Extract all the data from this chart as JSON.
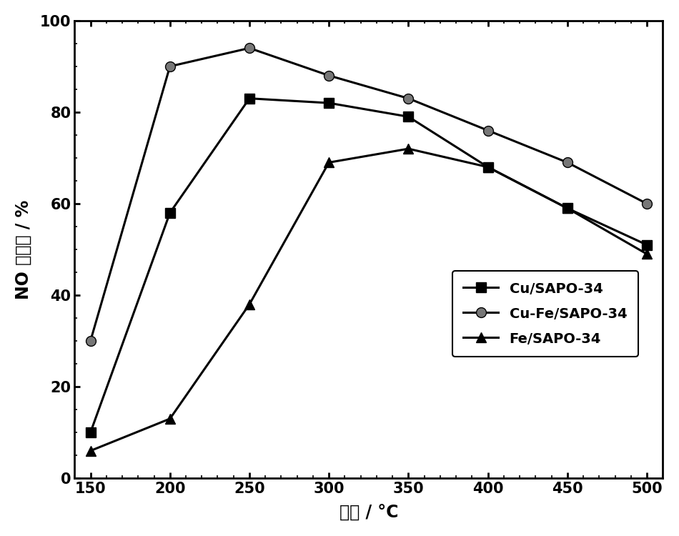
{
  "x": [
    150,
    200,
    250,
    300,
    350,
    400,
    450,
    500
  ],
  "cu_sapo34": [
    10,
    58,
    83,
    82,
    79,
    68,
    59,
    51
  ],
  "cu_fe_sapo34": [
    30,
    90,
    94,
    88,
    83,
    76,
    69,
    60
  ],
  "fe_sapo34": [
    6,
    13,
    38,
    69,
    72,
    68,
    59,
    49
  ],
  "xlabel_cn": "温度",
  "xlabel_unit": " / °C",
  "ylabel_no": "NO ",
  "ylabel_cn": "转化率",
  "ylabel_unit": " / %",
  "xlim": [
    140,
    510
  ],
  "ylim": [
    0,
    100
  ],
  "xticks": [
    150,
    200,
    250,
    300,
    350,
    400,
    450,
    500
  ],
  "yticks": [
    0,
    20,
    40,
    60,
    80,
    100
  ],
  "legend_cu": "Cu/SAPO-34",
  "legend_cu_fe": "Cu-Fe/SAPO-34",
  "legend_fe": "Fe/SAPO-34",
  "color_black": "#000000",
  "color_gray": "#777777",
  "marker_square": "s",
  "marker_circle": "o",
  "marker_triangle": "^",
  "marker_size": 10,
  "line_width": 2.2,
  "font_size_label": 17,
  "font_size_tick": 15,
  "font_size_legend": 14,
  "background_color": "#ffffff"
}
